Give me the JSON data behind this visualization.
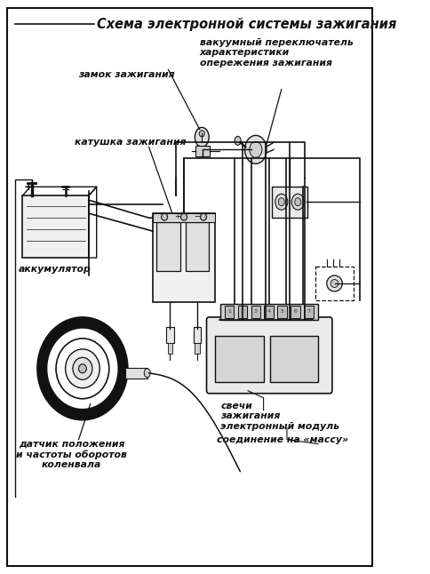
{
  "title": "Схема электронной системы зажигания",
  "bg_color": "#ffffff",
  "border_color": "#111111",
  "labels": {
    "zamok": "замок зажигания",
    "katushka": "катушка зажигания",
    "akkum": "аккумулятор",
    "vakuum": "вакуумный переключатель\nхарактеристики\nопережения зажигания",
    "datchik": "датчик положения\nи частоты оборотов\nколенвала",
    "svechi": "свечи\nзажигания",
    "modul": "электронный модуль",
    "soedin": "соединение на «массу»"
  },
  "line_color": "#111111",
  "text_color": "#111111",
  "font_size_title": 10.5,
  "font_size_label": 7.8,
  "figsize": [
    4.84,
    6.46
  ],
  "dpi": 100,
  "border_lw": 1.5
}
